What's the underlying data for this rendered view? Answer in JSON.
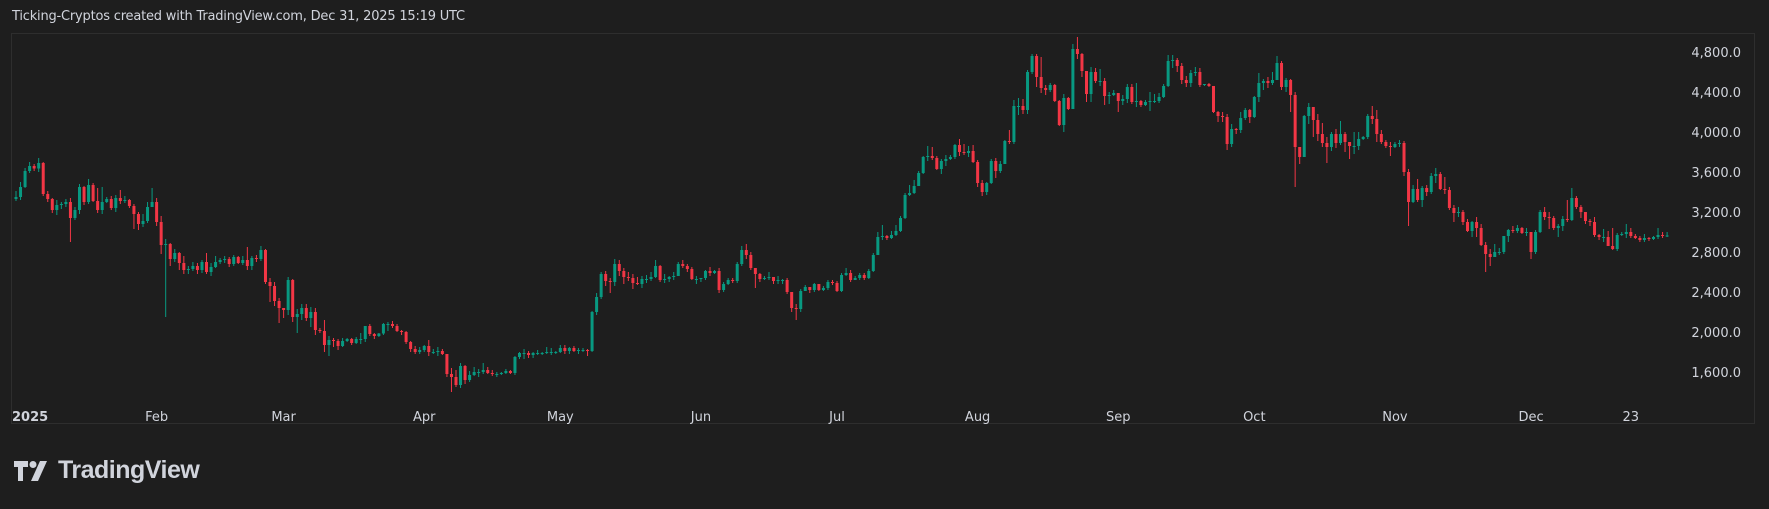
{
  "caption": "Ticking-Cryptos created with TradingView.com, Dec 31, 2025 15:19 UTC",
  "logo": {
    "text": "TradingView",
    "icon": "tradingview-logo-icon"
  },
  "colors": {
    "background": "#1e1e1e",
    "up": "#089981",
    "down": "#f23645",
    "text": "#d1d4dc",
    "border": "#2e2e2e"
  },
  "chart_data": {
    "type": "candlestick",
    "interval": "1D",
    "start_date": "2025-01-01",
    "ylim": [
      1300,
      4970
    ],
    "y_ticks": [
      "4,800.0",
      "4,400.0",
      "4,000.0",
      "3,600.0",
      "3,200.0",
      "2,800.0",
      "2,400.0",
      "2,000.0",
      "1,600.0"
    ],
    "y_tick_values": [
      4800,
      4400,
      4000,
      3600,
      3200,
      2800,
      2400,
      2000,
      1600
    ],
    "x_ticks": [
      {
        "label": "2025",
        "date": "2025-01-01"
      },
      {
        "label": "Feb",
        "date": "2025-02-01"
      },
      {
        "label": "Mar",
        "date": "2025-03-01"
      },
      {
        "label": "Apr",
        "date": "2025-04-01"
      },
      {
        "label": "May",
        "date": "2025-05-01"
      },
      {
        "label": "Jun",
        "date": "2025-06-01"
      },
      {
        "label": "Jul",
        "date": "2025-07-01"
      },
      {
        "label": "Aug",
        "date": "2025-08-01"
      },
      {
        "label": "Sep",
        "date": "2025-09-01"
      },
      {
        "label": "Oct",
        "date": "2025-10-01"
      },
      {
        "label": "Nov",
        "date": "2025-11-01"
      },
      {
        "label": "Dec",
        "date": "2025-12-01"
      },
      {
        "label": "23",
        "date": "2025-12-23"
      }
    ],
    "grid": false,
    "first_open": 3330,
    "close": [
      3350,
      3450,
      3610,
      3660,
      3635,
      3690,
      3380,
      3330,
      3220,
      3270,
      3280,
      3300,
      3140,
      3220,
      3450,
      3300,
      3470,
      3310,
      3220,
      3300,
      3330,
      3240,
      3340,
      3310,
      3320,
      3260,
      3180,
      3080,
      3110,
      3250,
      3300,
      3100,
      2870,
      2880,
      2730,
      2790,
      2690,
      2620,
      2630,
      2660,
      2620,
      2700,
      2600,
      2650,
      2700,
      2720,
      2730,
      2680,
      2750,
      2690,
      2720,
      2660,
      2740,
      2730,
      2820,
      2500,
      2460,
      2310,
      2240,
      2220,
      2520,
      2150,
      2180,
      2240,
      2140,
      2200,
      2020,
      2010,
      1870,
      1920,
      1910,
      1860,
      1910,
      1930,
      1890,
      1930,
      1930,
      2060,
      1980,
      1960,
      1985,
      2080,
      2080,
      2060,
      2010,
      2000,
      1900,
      1830,
      1800,
      1820,
      1860,
      1800,
      1800,
      1810,
      1780,
      1580,
      1550,
      1470,
      1660,
      1520,
      1570,
      1600,
      1600,
      1620,
      1590,
      1580,
      1580,
      1590,
      1610,
      1590,
      1750,
      1790,
      1790,
      1770,
      1790,
      1790,
      1790,
      1800,
      1800,
      1800,
      1840,
      1810,
      1840,
      1810,
      1820,
      1820,
      1810,
      2200,
      2350,
      2580,
      2510,
      2500,
      2680,
      2610,
      2550,
      2540,
      2490,
      2480,
      2530,
      2530,
      2550,
      2660,
      2520,
      2530,
      2550,
      2560,
      2680,
      2660,
      2630,
      2530,
      2530,
      2540,
      2610,
      2590,
      2610,
      2420,
      2480,
      2520,
      2510,
      2680,
      2820,
      2770,
      2640,
      2580,
      2530,
      2540,
      2550,
      2510,
      2520,
      2520,
      2400,
      2240,
      2230,
      2410,
      2450,
      2420,
      2480,
      2420,
      2440,
      2500,
      2490,
      2410,
      2570,
      2590,
      2520,
      2540,
      2570,
      2540,
      2610,
      2770,
      2950,
      2960,
      2940,
      2970,
      3010,
      3140,
      3370,
      3390,
      3460,
      3590,
      3750,
      3760,
      3740,
      3630,
      3710,
      3730,
      3750,
      3870,
      3800,
      3790,
      3810,
      3700,
      3490,
      3400,
      3490,
      3710,
      3610,
      3680,
      3910,
      3900,
      4260,
      4260,
      4220,
      4600,
      4760,
      4550,
      4440,
      4420,
      4470,
      4310,
      4070,
      4340,
      4230,
      4830,
      4780,
      4610,
      4380,
      4600,
      4510,
      4510,
      4360,
      4370,
      4390,
      4310,
      4330,
      4450,
      4300,
      4310,
      4270,
      4300,
      4310,
      4310,
      4350,
      4460,
      4710,
      4720,
      4660,
      4520,
      4490,
      4590,
      4600,
      4470,
      4480,
      4460,
      4200,
      4160,
      4150,
      3880,
      4030,
      4020,
      4140,
      4220,
      4150,
      4350,
      4490,
      4510,
      4490,
      4520,
      4690,
      4450,
      4520,
      4370,
      3850,
      3750,
      4160,
      4250,
      4120,
      3980,
      3890,
      3850,
      3980,
      3890,
      3980,
      3900,
      3860,
      3860,
      3930,
      3950,
      4160,
      4130,
      3980,
      3900,
      3860,
      3850,
      3880,
      3890,
      3600,
      3300,
      3430,
      3320,
      3440,
      3400,
      3560,
      3580,
      3430,
      3420,
      3240,
      3190,
      3200,
      3100,
      3010,
      3100,
      3040,
      2870,
      2780,
      2750,
      2800,
      2800,
      2960,
      3020,
      3010,
      3040,
      2990,
      3000,
      2800,
      3000,
      3200,
      3150,
      3140,
      3040,
      3060,
      3130,
      3120,
      3340,
      3250,
      3200,
      3110,
      3100,
      2970,
      2950,
      2950,
      2860,
      2830,
      2970,
      2980,
      3000,
      2960,
      2940,
      2920,
      2940,
      2930,
      2950,
      2970,
      2960,
      2965
    ],
    "high": [
      3410,
      3500,
      3640,
      3700,
      3680,
      3740,
      3700,
      3410,
      3340,
      3320,
      3300,
      3330,
      3340,
      3250,
      3480,
      3460,
      3530,
      3490,
      3440,
      3450,
      3350,
      3360,
      3370,
      3420,
      3360,
      3330,
      3280,
      3200,
      3180,
      3300,
      3440,
      3340,
      3160,
      2930,
      2890,
      2830,
      2800,
      2760,
      2660,
      2700,
      2690,
      2720,
      2790,
      2690,
      2760,
      2740,
      2760,
      2750,
      2770,
      2760,
      2760,
      2850,
      2760,
      2770,
      2860,
      2830,
      2540,
      2500,
      2340,
      2240,
      2550,
      2530,
      2230,
      2280,
      2280,
      2250,
      2240,
      2040,
      2120,
      1960,
      1940,
      1930,
      1940,
      1940,
      1940,
      1950,
      1990,
      2060,
      2080,
      1990,
      1990,
      2090,
      2100,
      2110,
      2080,
      2020,
      2010,
      1910,
      1860,
      1850,
      1870,
      1920,
      1830,
      1850,
      1830,
      1780,
      1640,
      1620,
      1690,
      1670,
      1610,
      1650,
      1630,
      1690,
      1650,
      1620,
      1600,
      1600,
      1630,
      1620,
      1760,
      1800,
      1830,
      1810,
      1800,
      1820,
      1800,
      1850,
      1840,
      1810,
      1870,
      1870,
      1850,
      1860,
      1840,
      1840,
      1830,
      2210,
      2390,
      2600,
      2610,
      2540,
      2730,
      2720,
      2640,
      2600,
      2580,
      2550,
      2560,
      2570,
      2600,
      2720,
      2670,
      2580,
      2560,
      2600,
      2700,
      2720,
      2680,
      2650,
      2560,
      2540,
      2620,
      2650,
      2620,
      2640,
      2500,
      2540,
      2540,
      2700,
      2860,
      2880,
      2800,
      2640,
      2590,
      2560,
      2600,
      2540,
      2560,
      2530,
      2540,
      2400,
      2280,
      2430,
      2470,
      2430,
      2490,
      2480,
      2460,
      2520,
      2520,
      2510,
      2590,
      2640,
      2620,
      2560,
      2590,
      2590,
      2630,
      2790,
      3000,
      3070,
      2970,
      3010,
      3070,
      3160,
      3390,
      3470,
      3520,
      3610,
      3760,
      3860,
      3850,
      3760,
      3730,
      3770,
      3770,
      3880,
      3930,
      3880,
      3860,
      3870,
      3720,
      3520,
      3500,
      3730,
      3740,
      3710,
      3920,
      4020,
      4320,
      4340,
      4330,
      4620,
      4780,
      4780,
      4750,
      4470,
      4490,
      4480,
      4320,
      4380,
      4350,
      4880,
      4950,
      4790,
      4610,
      4650,
      4640,
      4630,
      4540,
      4400,
      4420,
      4390,
      4370,
      4480,
      4480,
      4490,
      4320,
      4320,
      4400,
      4380,
      4390,
      4480,
      4770,
      4770,
      4740,
      4690,
      4560,
      4620,
      4650,
      4640,
      4480,
      4490,
      4440,
      4210,
      4200,
      4180,
      4080,
      4040,
      4200,
      4240,
      4230,
      4360,
      4590,
      4530,
      4550,
      4600,
      4760,
      4710,
      4540,
      4530,
      4400,
      3830,
      4170,
      4290,
      4240,
      4180,
      4090,
      3950,
      4000,
      4030,
      4110,
      4000,
      3890,
      4000,
      4000,
      3960,
      4180,
      4260,
      4220,
      4020,
      3920,
      3900,
      3900,
      3920,
      3910,
      3630,
      3470,
      3530,
      3460,
      3470,
      3590,
      3640,
      3600,
      3550,
      3450,
      3270,
      3250,
      3220,
      3130,
      3110,
      3150,
      3080,
      2900,
      2830,
      2880,
      2840,
      2960,
      3030,
      3060,
      3070,
      3050,
      3040,
      3000,
      3020,
      3220,
      3250,
      3200,
      3160,
      3080,
      3160,
      3320,
      3440,
      3360,
      3270,
      3130,
      3130,
      3150,
      2980,
      3030,
      3010,
      3040,
      2990,
      3000,
      3080,
      3040,
      2980,
      2960,
      2980,
      2950,
      2960,
      3040,
      3000,
      3000
    ],
    "low": [
      3310,
      3320,
      3440,
      3590,
      3610,
      3600,
      3360,
      3300,
      3190,
      3170,
      3230,
      3250,
      2900,
      3120,
      3180,
      3270,
      3280,
      3300,
      3190,
      3180,
      3290,
      3220,
      3200,
      3280,
      3290,
      3240,
      3030,
      3020,
      3050,
      3090,
      3260,
      3060,
      2780,
      2150,
      2660,
      2700,
      2620,
      2580,
      2580,
      2610,
      2580,
      2590,
      2580,
      2560,
      2640,
      2680,
      2690,
      2650,
      2660,
      2680,
      2670,
      2620,
      2620,
      2700,
      2710,
      2480,
      2300,
      2260,
      2090,
      2140,
      2170,
      2100,
      1990,
      2120,
      2110,
      2050,
      1970,
      1990,
      1800,
      1760,
      1850,
      1820,
      1850,
      1900,
      1870,
      1880,
      1880,
      1900,
      1960,
      1930,
      1950,
      1970,
      2010,
      2040,
      2000,
      1970,
      1880,
      1800,
      1780,
      1780,
      1800,
      1760,
      1780,
      1760,
      1770,
      1550,
      1400,
      1450,
      1440,
      1480,
      1500,
      1560,
      1550,
      1580,
      1580,
      1560,
      1550,
      1570,
      1580,
      1580,
      1570,
      1730,
      1730,
      1740,
      1740,
      1770,
      1770,
      1780,
      1770,
      1780,
      1790,
      1780,
      1780,
      1800,
      1780,
      1800,
      1760,
      1800,
      2170,
      2330,
      2460,
      2390,
      2460,
      2560,
      2480,
      2510,
      2430,
      2470,
      2440,
      2490,
      2510,
      2540,
      2500,
      2490,
      2500,
      2520,
      2560,
      2640,
      2600,
      2520,
      2480,
      2500,
      2520,
      2560,
      2580,
      2390,
      2400,
      2470,
      2490,
      2490,
      2660,
      2730,
      2620,
      2440,
      2500,
      2520,
      2520,
      2480,
      2480,
      2480,
      2380,
      2200,
      2120,
      2200,
      2410,
      2390,
      2400,
      2410,
      2410,
      2420,
      2470,
      2400,
      2400,
      2560,
      2500,
      2520,
      2520,
      2520,
      2530,
      2600,
      2770,
      2920,
      2920,
      2930,
      2960,
      3000,
      3130,
      3360,
      3380,
      3500,
      3580,
      3710,
      3720,
      3620,
      3580,
      3660,
      3720,
      3730,
      3760,
      3770,
      3750,
      3690,
      3450,
      3360,
      3370,
      3480,
      3540,
      3590,
      3680,
      3880,
      3880,
      4170,
      4180,
      4180,
      4580,
      4450,
      4390,
      4370,
      4400,
      4300,
      4060,
      4000,
      4220,
      4250,
      4730,
      4550,
      4300,
      4300,
      4490,
      4460,
      4270,
      4280,
      4360,
      4200,
      4270,
      4290,
      4280,
      4250,
      4250,
      4260,
      4210,
      4290,
      4290,
      4340,
      4450,
      4640,
      4600,
      4480,
      4450,
      4450,
      4560,
      4450,
      4460,
      4450,
      4190,
      4100,
      4100,
      3820,
      3850,
      3980,
      3990,
      4120,
      4090,
      4140,
      4300,
      4420,
      4440,
      4470,
      4520,
      4420,
      4400,
      4200,
      3450,
      3680,
      3750,
      4080,
      3950,
      3910,
      3850,
      3690,
      3810,
      3840,
      3870,
      3800,
      3730,
      3780,
      3820,
      3920,
      3930,
      4080,
      3900,
      3880,
      3840,
      3760,
      3840,
      3850,
      3560,
      3060,
      3290,
      3300,
      3250,
      3360,
      3380,
      3490,
      3420,
      3380,
      3220,
      3100,
      3150,
      3070,
      3000,
      2950,
      2950,
      2860,
      2600,
      2660,
      2750,
      2770,
      2780,
      2900,
      2990,
      2990,
      2980,
      2960,
      2730,
      2780,
      2990,
      3120,
      3030,
      3020,
      2950,
      3010,
      3100,
      3110,
      3230,
      3140,
      3080,
      3060,
      2950,
      2920,
      2900,
      2860,
      2820,
      2810,
      2960,
      2940,
      2940,
      2930,
      2900,
      2900,
      2910,
      2920,
      2930,
      2940,
      2950
    ]
  }
}
